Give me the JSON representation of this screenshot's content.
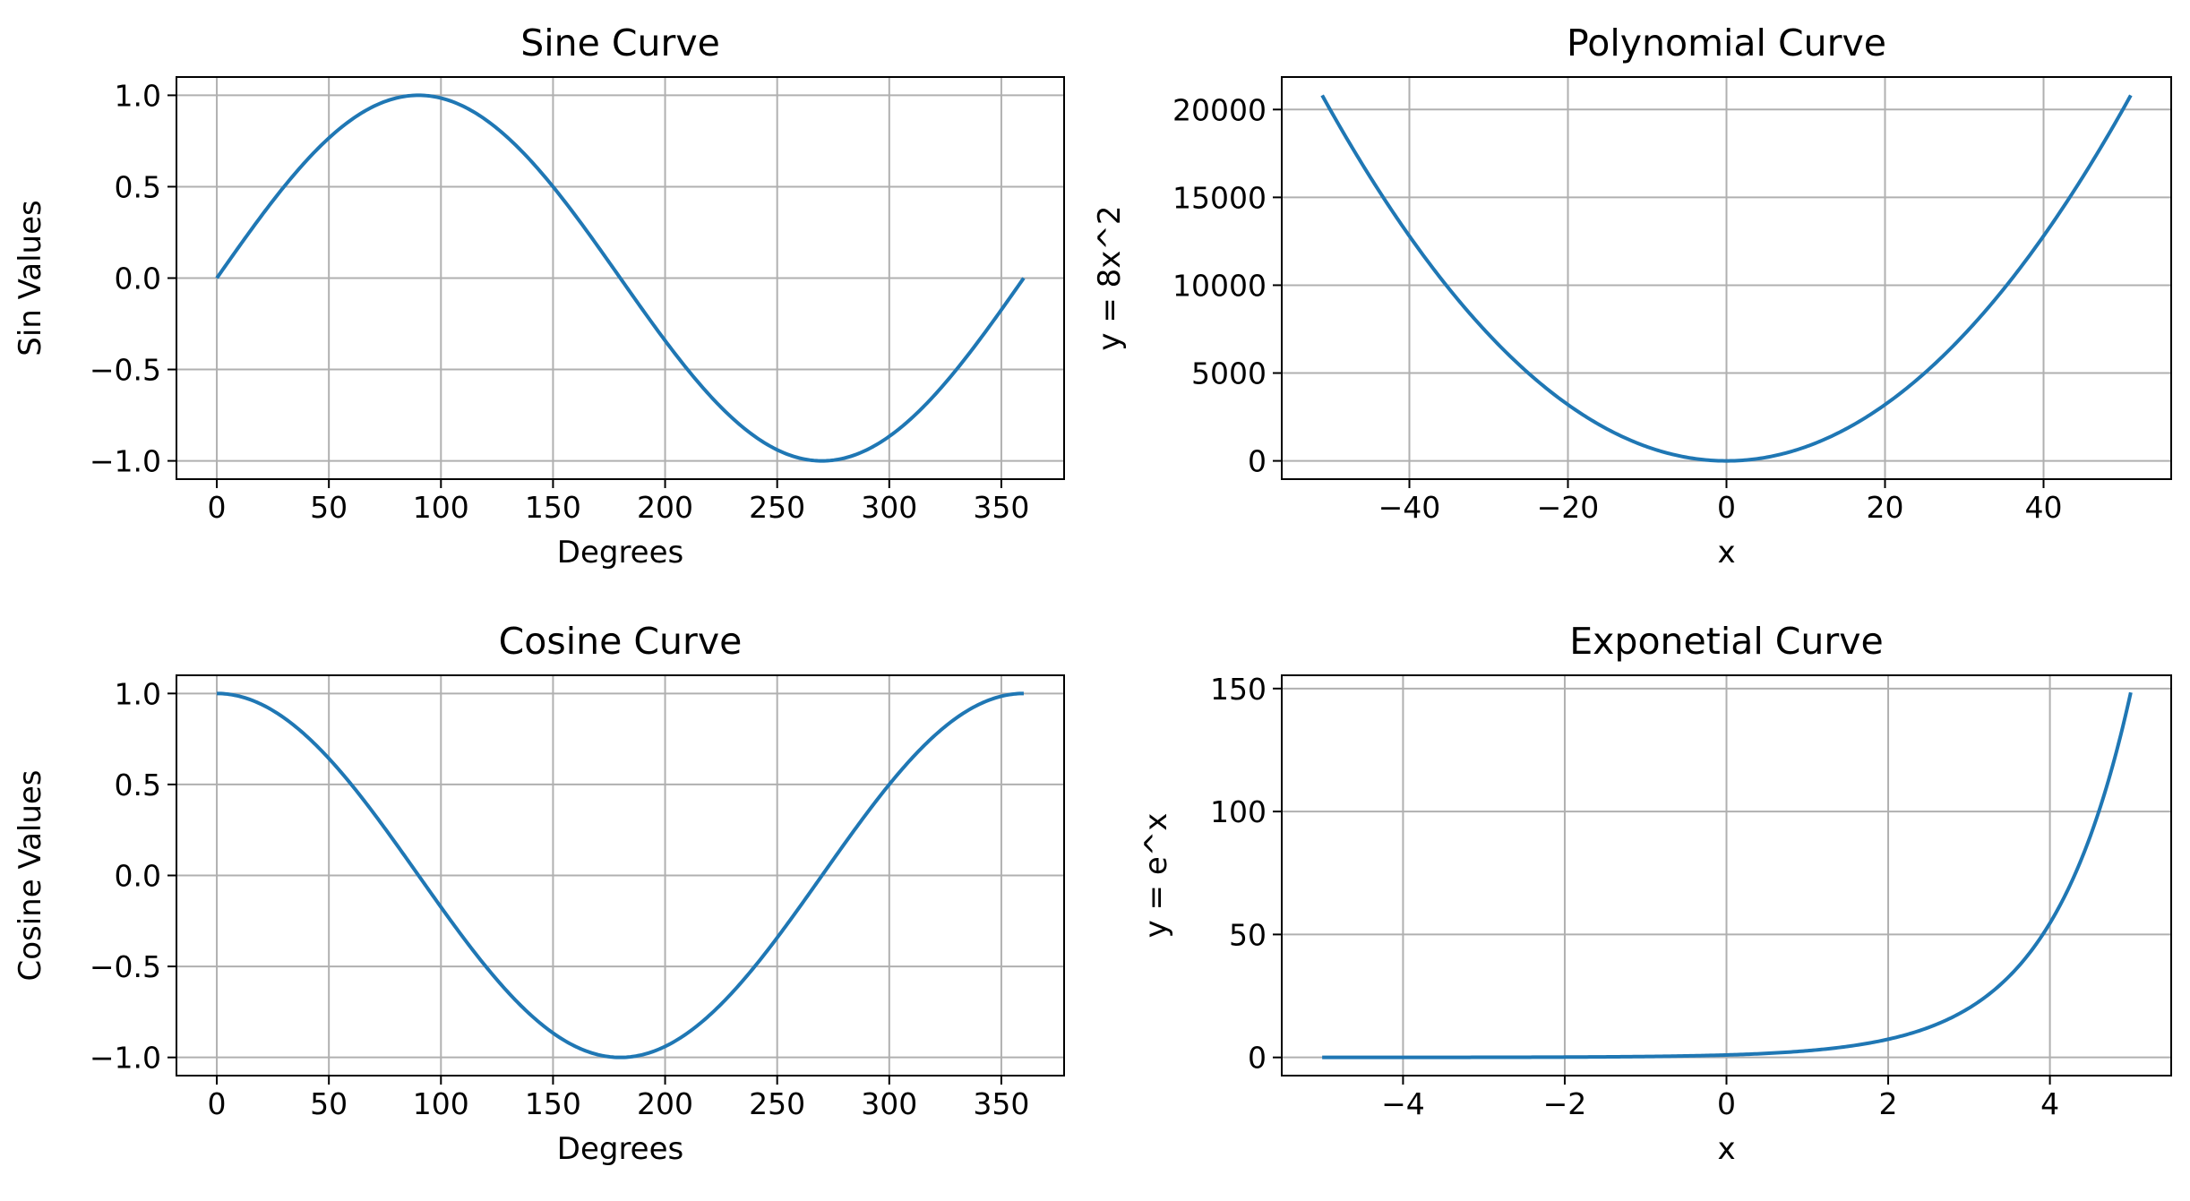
{
  "chart_data": [
    {
      "type": "line",
      "title": "Sine Curve",
      "xlabel": "Degrees",
      "ylabel": "Sin Values",
      "function": "sin(degrees)",
      "x_range": [
        0,
        360
      ],
      "xlim": [
        -18,
        378
      ],
      "ylim": [
        -1.1,
        1.1
      ],
      "xticks": [
        0,
        50,
        100,
        150,
        200,
        250,
        300,
        350
      ],
      "xtick_labels": [
        "0",
        "50",
        "100",
        "150",
        "200",
        "250",
        "300",
        "350"
      ],
      "yticks": [
        -1.0,
        -0.5,
        0.0,
        0.5,
        1.0
      ],
      "ytick_labels": [
        "−1.0",
        "−0.5",
        "0.0",
        "0.5",
        "1.0"
      ],
      "grid": true,
      "color": "#1f77b4",
      "x": [
        0,
        30,
        60,
        90,
        120,
        150,
        180,
        210,
        240,
        270,
        300,
        330,
        360
      ],
      "y": [
        0.0,
        0.5,
        0.866,
        1.0,
        0.866,
        0.5,
        0.0,
        -0.5,
        -0.866,
        -1.0,
        -0.866,
        -0.5,
        0.0
      ]
    },
    {
      "type": "line",
      "title": "Polynomial Curve",
      "xlabel": "x",
      "ylabel": "y = 8x^2",
      "function": "8x^2",
      "x_range": [
        -51,
        51
      ],
      "xlim": [
        -56.1,
        56.1
      ],
      "ylim": [
        -1040,
        21850
      ],
      "xticks": [
        -40,
        -20,
        0,
        20,
        40
      ],
      "xtick_labels": [
        "−40",
        "−20",
        "0",
        "20",
        "40"
      ],
      "yticks": [
        0,
        5000,
        10000,
        15000,
        20000
      ],
      "ytick_labels": [
        "0",
        "5000",
        "10000",
        "15000",
        "20000"
      ],
      "grid": true,
      "color": "#1f77b4",
      "x": [
        -51,
        -40,
        -30,
        -20,
        -10,
        0,
        10,
        20,
        30,
        40,
        51
      ],
      "y": [
        20808,
        12800,
        7200,
        3200,
        800,
        0,
        800,
        3200,
        7200,
        12800,
        20808
      ]
    },
    {
      "type": "line",
      "title": "Cosine Curve",
      "xlabel": "Degrees",
      "ylabel": "Cosine Values",
      "function": "cos(degrees)",
      "x_range": [
        0,
        360
      ],
      "xlim": [
        -18,
        378
      ],
      "ylim": [
        -1.1,
        1.1
      ],
      "xticks": [
        0,
        50,
        100,
        150,
        200,
        250,
        300,
        350
      ],
      "xtick_labels": [
        "0",
        "50",
        "100",
        "150",
        "200",
        "250",
        "300",
        "350"
      ],
      "yticks": [
        -1.0,
        -0.5,
        0.0,
        0.5,
        1.0
      ],
      "ytick_labels": [
        "−1.0",
        "−0.5",
        "0.0",
        "0.5",
        "1.0"
      ],
      "grid": true,
      "color": "#1f77b4",
      "x": [
        0,
        30,
        60,
        90,
        120,
        150,
        180,
        210,
        240,
        270,
        300,
        330,
        360
      ],
      "y": [
        1.0,
        0.866,
        0.5,
        0.0,
        -0.5,
        -0.866,
        -1.0,
        -0.866,
        -0.5,
        0.0,
        0.5,
        0.866,
        1.0
      ]
    },
    {
      "type": "line",
      "title": "Exponetial Curve",
      "xlabel": "x",
      "ylabel": "y = e^x",
      "function": "e^x",
      "x_range": [
        -5,
        5
      ],
      "xlim": [
        -5.5,
        5.5
      ],
      "ylim": [
        -7.4,
        155.4
      ],
      "xticks": [
        -4,
        -2,
        0,
        2,
        4
      ],
      "xtick_labels": [
        "−4",
        "−2",
        "0",
        "2",
        "4"
      ],
      "yticks": [
        0,
        50,
        100,
        150
      ],
      "ytick_labels": [
        "0",
        "50",
        "100",
        "150"
      ],
      "grid": true,
      "color": "#1f77b4",
      "x": [
        -5,
        -4,
        -3,
        -2,
        -1,
        0,
        1,
        2,
        3,
        4,
        4.5,
        5
      ],
      "y": [
        0.0067,
        0.018,
        0.05,
        0.135,
        0.368,
        1.0,
        2.718,
        7.389,
        20.09,
        54.6,
        90.02,
        148.41
      ]
    }
  ]
}
